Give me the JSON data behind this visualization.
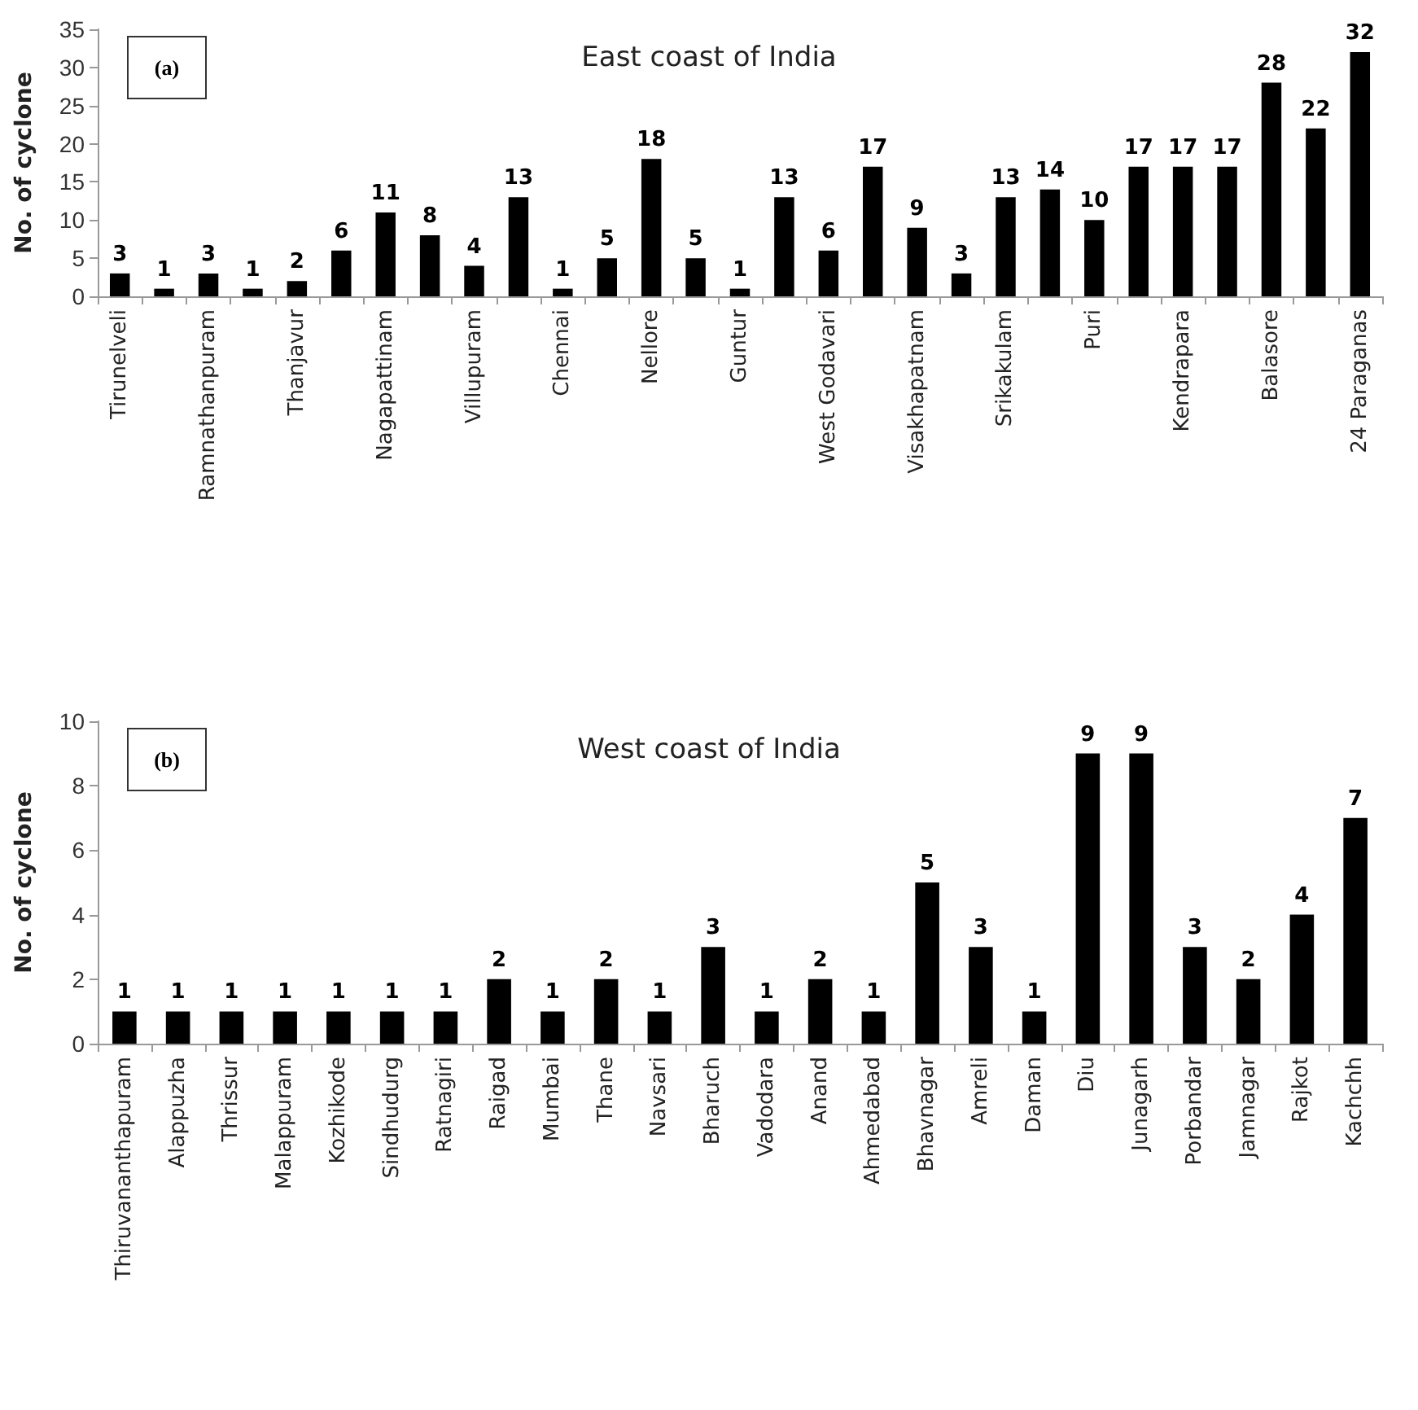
{
  "chart_data": [
    {
      "type": "bar",
      "title": "East coast of India",
      "ylabel": "No. of cyclone",
      "annotations": [
        "(a)"
      ],
      "categories": [
        "Tirunelveli",
        null,
        "Ramnathanpuram",
        null,
        "Thanjavur",
        null,
        "Nagapattinam",
        null,
        "Villupuram",
        null,
        "Chennai",
        null,
        "Nellore",
        null,
        "Guntur",
        null,
        "West Godavari",
        null,
        "Visakhapatnam",
        null,
        "Srikakulam",
        null,
        "Puri",
        null,
        "Kendrapara",
        null,
        "Balasore",
        null,
        "24 Paraganas"
      ],
      "values": [
        3,
        1,
        3,
        1,
        2,
        6,
        11,
        8,
        4,
        13,
        1,
        5,
        18,
        5,
        1,
        13,
        6,
        17,
        9,
        3,
        13,
        14,
        10,
        17,
        17,
        17,
        28,
        22,
        32
      ],
      "color": "#000000",
      "ylim": [
        0,
        35
      ],
      "yticks": [
        0,
        5,
        10,
        15,
        20,
        25,
        30,
        35
      ],
      "data_labels": true
    },
    {
      "type": "bar",
      "title": "West coast of India",
      "ylabel": "No. of cyclone",
      "annotations": [
        "(b)"
      ],
      "categories": [
        "Thiruvananthapuram",
        "Alappuzha",
        "Thrissur",
        "Malappuram",
        "Kozhikode",
        "Sindhudurg",
        "Ratnagiri",
        "Raigad",
        "Mumbai",
        "Thane",
        "Navsari",
        "Bharuch",
        "Vadodara",
        "Anand",
        "Ahmedabad",
        "Bhavnagar",
        "Amreli",
        "Daman",
        "Diu",
        "Junagarh",
        "Porbandar",
        "Jamnagar",
        "Rajkot",
        "Kachchh"
      ],
      "values": [
        1,
        1,
        1,
        1,
        1,
        1,
        1,
        2,
        1,
        2,
        1,
        3,
        1,
        2,
        1,
        5,
        3,
        1,
        9,
        9,
        3,
        2,
        4,
        7
      ],
      "color": "#000000",
      "ylim": [
        0,
        10
      ],
      "yticks": [
        0,
        2,
        4,
        6,
        8,
        10
      ],
      "data_labels": true
    }
  ]
}
